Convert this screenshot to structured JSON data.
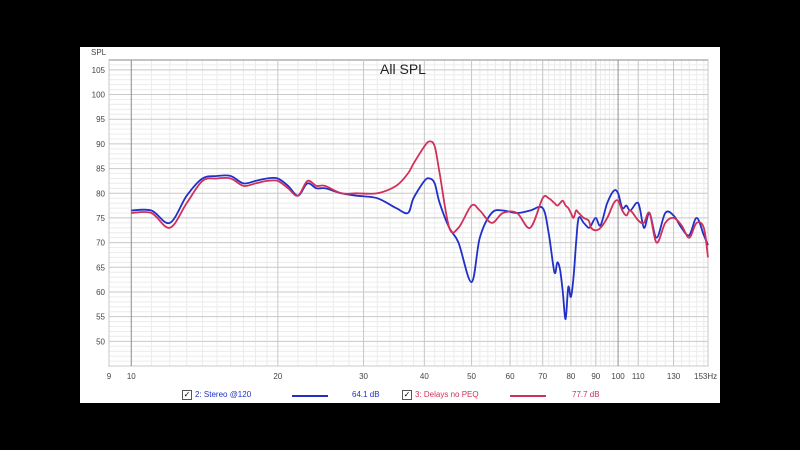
{
  "chart_data": {
    "type": "line",
    "title": "All SPL",
    "ylabel": "SPL",
    "xunit": "Hz",
    "xscale": "log",
    "xlim": [
      9,
      153
    ],
    "ylim": [
      45,
      107
    ],
    "grid": true,
    "yticks": [
      50,
      55,
      60,
      65,
      70,
      75,
      80,
      85,
      90,
      95,
      100,
      105
    ],
    "xticks": [
      9,
      10,
      20,
      30,
      40,
      50,
      60,
      70,
      80,
      90,
      100,
      110,
      130,
      153
    ],
    "xtick_labels": [
      "9",
      "10",
      "20",
      "30",
      "40",
      "50",
      "60",
      "70",
      "80",
      "90",
      "100",
      "110",
      "130",
      "153Hz"
    ],
    "series": [
      {
        "name": "2: Stereo @120",
        "color": "#2030c8",
        "legend_value": "64.1 dB",
        "checked": true,
        "x": [
          10,
          11,
          12,
          13,
          14,
          15,
          16,
          17,
          18,
          19,
          20,
          21,
          22,
          23,
          24,
          25,
          27,
          29,
          32,
          35,
          37,
          38,
          40,
          41,
          42,
          43,
          45,
          47,
          50,
          52,
          55,
          58,
          62,
          66,
          70,
          72,
          74,
          75,
          76,
          77,
          78,
          79,
          80,
          81,
          82,
          83,
          85,
          87,
          88,
          90,
          92,
          95,
          98,
          100,
          102,
          104,
          106,
          110,
          113,
          116,
          120,
          125,
          130,
          135,
          140,
          145,
          150,
          153
        ],
        "y": [
          76.5,
          76.5,
          74,
          79.5,
          83,
          83.5,
          83.5,
          82,
          82.5,
          83,
          83,
          81.5,
          79.5,
          82,
          81,
          81,
          80,
          79.5,
          79,
          77,
          76,
          79,
          82.5,
          83,
          82,
          78,
          73,
          70,
          62,
          71,
          76,
          76.5,
          76,
          76.5,
          77,
          72,
          64,
          66,
          64.5,
          60,
          54.5,
          61,
          59,
          63,
          70,
          75,
          74,
          73,
          73.5,
          75,
          73.5,
          78,
          80.5,
          80,
          77,
          77.5,
          76.5,
          78,
          73,
          76,
          71,
          76,
          75.5,
          73,
          71.5,
          75,
          71.5,
          69.5
        ]
      },
      {
        "name": "3: Delays no PEQ",
        "color": "#d0305a",
        "legend_value": "77.7 dB",
        "checked": true,
        "x": [
          10,
          11,
          12,
          13,
          14,
          15,
          16,
          17,
          18,
          19,
          20,
          21,
          22,
          23,
          24,
          25,
          27,
          29,
          32,
          35,
          37,
          38,
          40,
          41,
          42,
          43,
          45,
          47,
          50,
          52,
          55,
          58,
          62,
          66,
          70,
          72,
          74,
          75,
          76,
          77,
          78,
          79,
          80,
          81,
          82,
          83,
          85,
          87,
          88,
          90,
          92,
          95,
          98,
          100,
          102,
          104,
          106,
          110,
          113,
          116,
          120,
          125,
          130,
          135,
          140,
          145,
          150,
          153
        ],
        "y": [
          76,
          76,
          73,
          78,
          82.5,
          83,
          83,
          81.5,
          82,
          82.5,
          82.5,
          81,
          79.5,
          82.5,
          81.5,
          81.5,
          80,
          80,
          80,
          81.5,
          84,
          86,
          89.5,
          90.5,
          89.5,
          84,
          73,
          73,
          77.5,
          76.5,
          74,
          76,
          76,
          73,
          79,
          79,
          78,
          77.5,
          78,
          78.5,
          77.5,
          77,
          76,
          75,
          76.5,
          76,
          75,
          74.5,
          73,
          72.5,
          73,
          75,
          78,
          78.5,
          76.5,
          75.5,
          76.5,
          74.5,
          74,
          76,
          70,
          74,
          75,
          73.5,
          71,
          74,
          73,
          67
        ]
      }
    ]
  }
}
